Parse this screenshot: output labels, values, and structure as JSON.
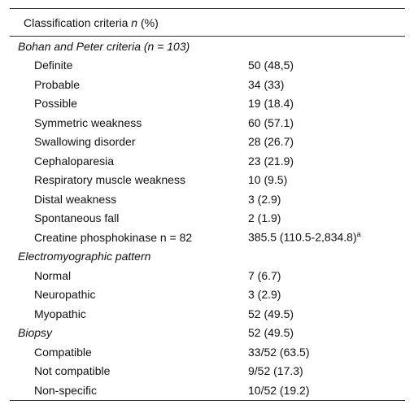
{
  "header": {
    "label": "Classification criteria",
    "n": "n",
    "unit": "(%)"
  },
  "sections": [
    {
      "title": "Bohan and Peter criteria (n = 103)",
      "value": null,
      "rows": [
        {
          "label": "Definite",
          "value": "50 (48,5)"
        },
        {
          "label": "Probable",
          "value": "34 (33)"
        },
        {
          "label": "Possible",
          "value": "19 (18.4)"
        },
        {
          "label": "Symmetric weakness",
          "value": "60 (57.1)"
        },
        {
          "label": "Swallowing disorder",
          "value": "28 (26.7)"
        },
        {
          "label": "Cephaloparesia",
          "value": "23 (21.9)"
        },
        {
          "label": "Respiratory muscle weakness",
          "value": "10 (9.5)"
        },
        {
          "label": "Distal weakness",
          "value": "3 (2.9)"
        },
        {
          "label": "Spontaneous fall",
          "value": "2 (1.9)"
        },
        {
          "label": "Creatine phosphokinase n = 82",
          "value": "385.5 (110.5-2,834.8)",
          "note": "a"
        }
      ]
    },
    {
      "title": "Electromyographic pattern",
      "value": null,
      "rows": [
        {
          "label": "Normal",
          "value": "7 (6.7)"
        },
        {
          "label": "Neuropathic",
          "value": "3 (2.9)"
        },
        {
          "label": "Myopathic",
          "value": "52 (49.5)"
        }
      ]
    },
    {
      "title": "Biopsy",
      "value": "52 (49.5)",
      "rows": [
        {
          "label": "Compatible",
          "value": "33/52 (63.5)"
        },
        {
          "label": "Not compatible",
          "value": "9/52 (17.3)"
        },
        {
          "label": "Non-specific",
          "value": "10/52 (19.2)"
        }
      ]
    }
  ]
}
